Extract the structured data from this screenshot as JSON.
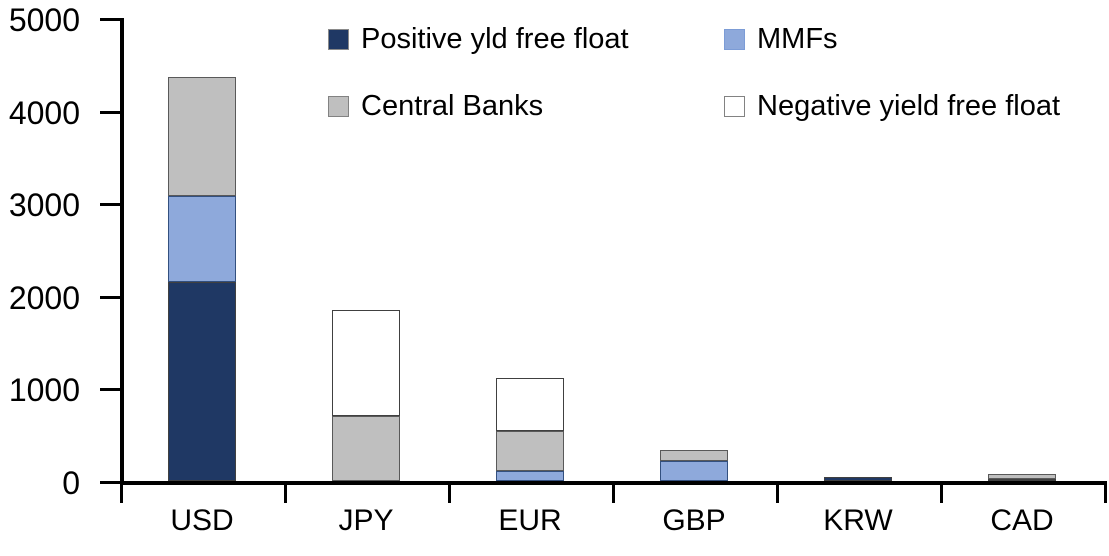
{
  "chart_data": {
    "type": "bar",
    "stacked": true,
    "title": "",
    "xlabel": "",
    "ylabel": "",
    "categories": [
      "USD",
      "JPY",
      "EUR",
      "GBP",
      "KRW",
      "CAD"
    ],
    "series": [
      {
        "name": "Positive yld free float",
        "color": "#1F3864",
        "border_color": "#404040",
        "swatch_border": "#8a8a8a",
        "values": [
          2150,
          0,
          0,
          0,
          45,
          25
        ]
      },
      {
        "name": "MMFs",
        "color": "#8EA9DB",
        "border_color": "#33507F",
        "swatch_border": "#7C9CD6",
        "values": [
          930,
          0,
          110,
          220,
          0,
          0
        ]
      },
      {
        "name": "Central Banks",
        "color": "#BFBFBF",
        "border_color": "#595959",
        "swatch_border": "#828282",
        "values": [
          1280,
          700,
          430,
          110,
          0,
          55
        ]
      },
      {
        "name": "Negative yield free float",
        "color": "#FFFFFF",
        "border_color": "#404040",
        "swatch_border": "#828282",
        "values": [
          0,
          1150,
          570,
          0,
          0,
          0
        ]
      }
    ],
    "totals": [
      4360,
      1850,
      1110,
      330,
      45,
      80
    ],
    "ylim": [
      0,
      5000
    ],
    "yticks": [
      0,
      1000,
      2000,
      3000,
      4000,
      5000
    ],
    "grid": false,
    "legend_position": "top",
    "legend_rows": [
      [
        "Positive yld free float",
        "MMFs"
      ],
      [
        "Central Banks",
        "Negative yield free float"
      ]
    ],
    "axis_color": "#000000",
    "background_color": "#FFFFFF"
  }
}
